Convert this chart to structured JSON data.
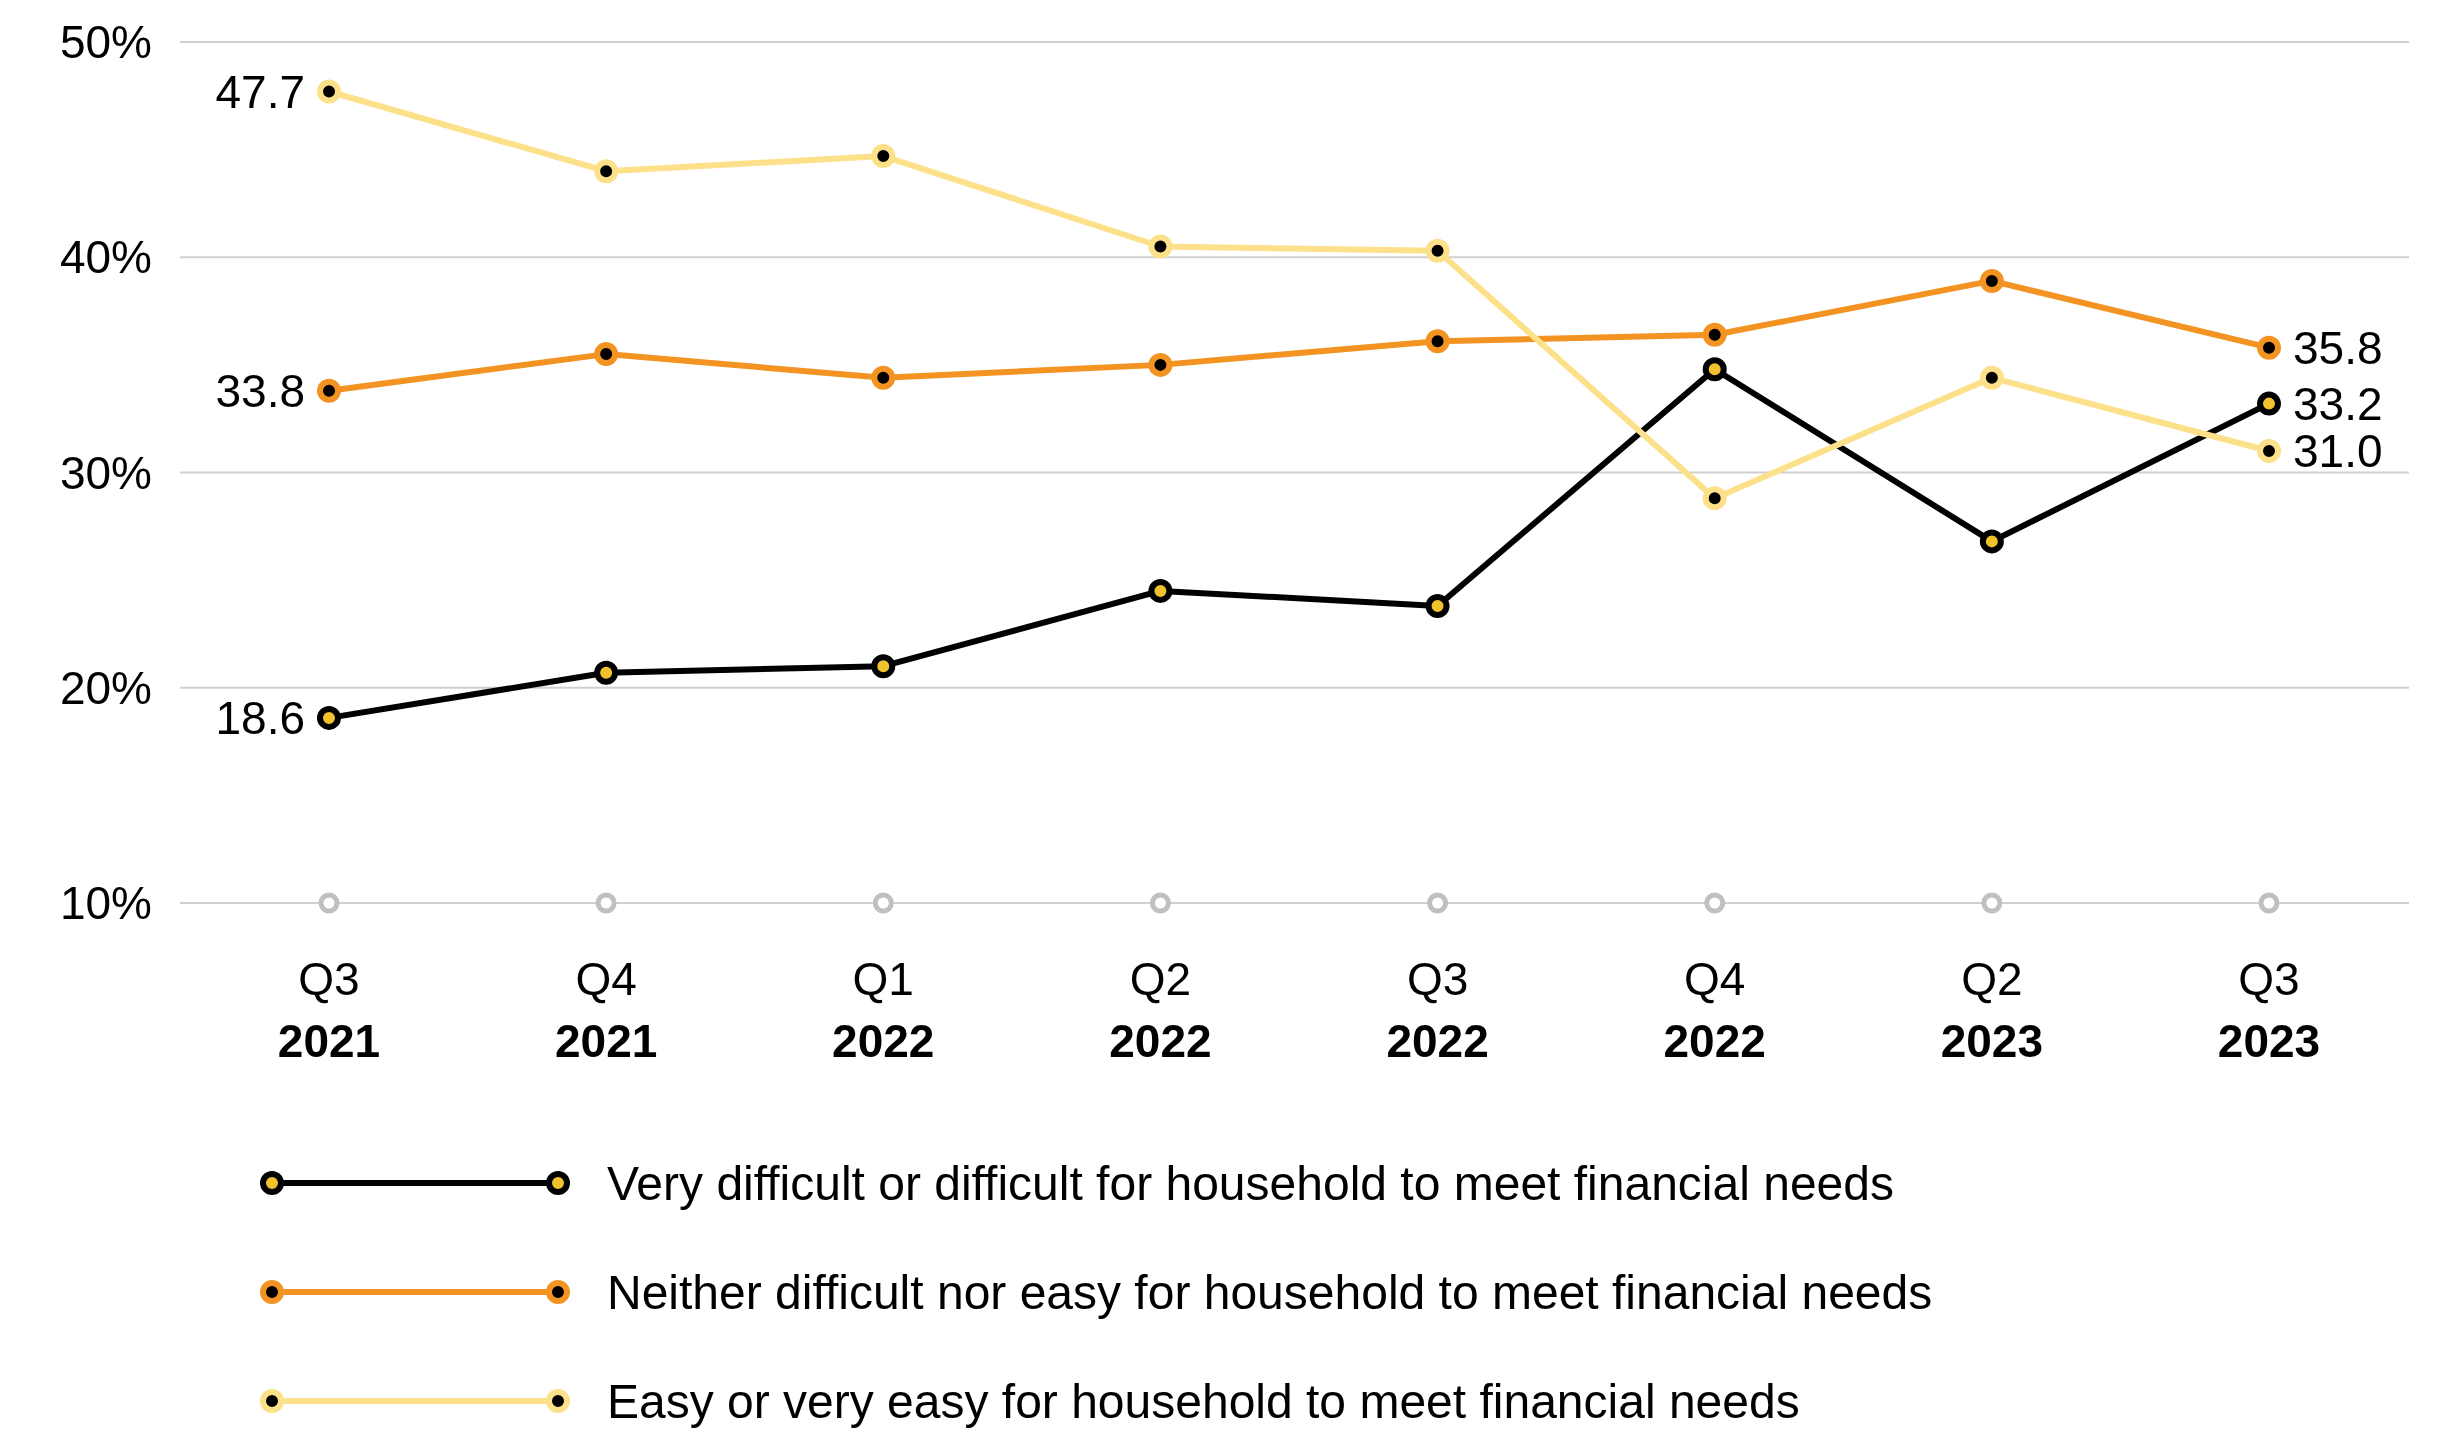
{
  "chart_data": {
    "type": "line",
    "categories": [
      "Q3 2021",
      "Q4 2021",
      "Q1 2022",
      "Q2 2022",
      "Q3 2022",
      "Q4 2022",
      "Q2 2023",
      "Q3 2023"
    ],
    "ylim": [
      10,
      50
    ],
    "yticks": [
      {
        "value": 10,
        "label": "10%"
      },
      {
        "value": 20,
        "label": "20%"
      },
      {
        "value": 30,
        "label": "30%"
      },
      {
        "value": 40,
        "label": "40%"
      },
      {
        "value": 50,
        "label": "50%"
      }
    ],
    "grid": "y",
    "legend": "bottom",
    "marker": "circle",
    "line_style": "solid",
    "series": [
      {
        "name": "Very difficult or difficult for household to meet financial needs",
        "color": "#000000",
        "values": [
          18.6,
          20.7,
          21.0,
          24.5,
          23.8,
          34.8,
          26.8,
          33.2
        ],
        "value_labels": [
          "18.6",
          null,
          null,
          null,
          null,
          null,
          null,
          "33.2"
        ]
      },
      {
        "name": "Neither difficult nor easy for household to meet financial needs",
        "color": "#f39322",
        "values": [
          33.8,
          35.5,
          34.4,
          35.0,
          36.1,
          36.4,
          38.9,
          35.8
        ],
        "value_labels": [
          "33.8",
          null,
          null,
          null,
          null,
          null,
          null,
          "35.8"
        ]
      },
      {
        "name": "Easy or very easy for household to meet financial needs",
        "color": "#fde08a",
        "values": [
          47.7,
          44.0,
          44.7,
          40.5,
          40.3,
          28.8,
          34.4,
          31.0
        ],
        "value_labels": [
          "47.7",
          null,
          null,
          null,
          null,
          null,
          null,
          "31.0"
        ]
      }
    ]
  }
}
